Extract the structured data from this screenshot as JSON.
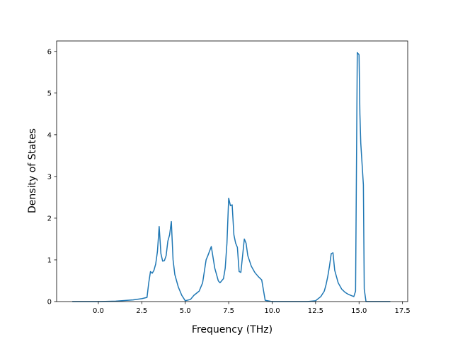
{
  "chart_data": {
    "type": "line",
    "title": "",
    "xlabel": "Frequency (THz)",
    "ylabel": "Density of States",
    "xlim": [
      -2.4,
      17.8
    ],
    "ylim": [
      0,
      6.25
    ],
    "x_ticks": [
      0.0,
      2.5,
      5.0,
      7.5,
      10.0,
      12.5,
      15.0,
      17.5
    ],
    "x_tick_labels": [
      "0.0",
      "2.5",
      "5.0",
      "7.5",
      "10.0",
      "12.5",
      "15.0",
      "17.5"
    ],
    "y_ticks": [
      0,
      1,
      2,
      3,
      4,
      5,
      6
    ],
    "y_tick_labels": [
      "0",
      "1",
      "2",
      "3",
      "4",
      "5",
      "6"
    ],
    "grid": false,
    "legend": "none",
    "series": [
      {
        "color": "#1f77b4",
        "x": [
          -1.5,
          0.0,
          1.0,
          2.0,
          2.5,
          2.8,
          2.9,
          3.0,
          3.1,
          3.2,
          3.3,
          3.4,
          3.5,
          3.6,
          3.7,
          3.8,
          3.9,
          4.0,
          4.1,
          4.2,
          4.3,
          4.4,
          4.6,
          4.8,
          5.0,
          5.3,
          5.5,
          5.8,
          6.0,
          6.2,
          6.3,
          6.5,
          6.7,
          6.9,
          7.0,
          7.1,
          7.2,
          7.3,
          7.4,
          7.5,
          7.6,
          7.7,
          7.8,
          7.9,
          8.0,
          8.1,
          8.2,
          8.3,
          8.4,
          8.5,
          8.6,
          8.8,
          9.0,
          9.2,
          9.4,
          9.6,
          10.0,
          11.0,
          12.0,
          12.5,
          12.8,
          13.0,
          13.1,
          13.2,
          13.3,
          13.4,
          13.5,
          13.6,
          13.8,
          14.0,
          14.2,
          14.4,
          14.7,
          14.8,
          14.9,
          15.0,
          15.05,
          15.1,
          15.25,
          15.3,
          15.4,
          16.0,
          16.8
        ],
        "y": [
          0.0,
          0.0,
          0.01,
          0.04,
          0.07,
          0.1,
          0.45,
          0.72,
          0.68,
          0.75,
          0.9,
          1.2,
          1.8,
          1.15,
          0.97,
          0.98,
          1.1,
          1.45,
          1.6,
          1.92,
          1.0,
          0.65,
          0.35,
          0.15,
          0.02,
          0.05,
          0.15,
          0.25,
          0.45,
          1.0,
          1.1,
          1.32,
          0.8,
          0.5,
          0.45,
          0.5,
          0.55,
          0.8,
          1.4,
          2.48,
          2.3,
          2.32,
          1.6,
          1.4,
          1.3,
          0.72,
          0.7,
          1.1,
          1.5,
          1.4,
          1.1,
          0.85,
          0.7,
          0.6,
          0.52,
          0.03,
          0.0,
          0.0,
          0.0,
          0.02,
          0.12,
          0.25,
          0.4,
          0.6,
          0.85,
          1.15,
          1.17,
          0.75,
          0.45,
          0.3,
          0.22,
          0.17,
          0.12,
          0.25,
          5.97,
          5.92,
          4.5,
          3.8,
          2.8,
          0.3,
          0.0,
          0.0,
          0.0
        ]
      }
    ]
  }
}
